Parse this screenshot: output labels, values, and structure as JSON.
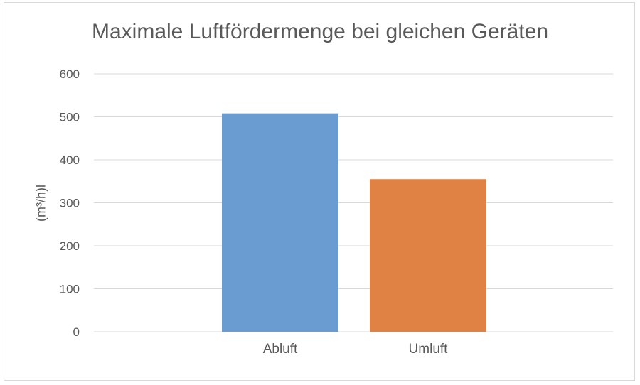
{
  "chart_data": {
    "type": "bar",
    "title": "Maximale Luftfördermenge bei gleichen Geräten",
    "ylabel": "(m³/h)l",
    "xlabel": "",
    "categories": [
      "Abluft",
      "Umluft"
    ],
    "values": [
      508,
      355
    ],
    "colors": [
      "#6a9bd1",
      "#e08244"
    ],
    "ylim": [
      0,
      600
    ],
    "yticks": [
      0,
      100,
      200,
      300,
      400,
      500,
      600
    ],
    "grid": true,
    "legend": "none"
  }
}
